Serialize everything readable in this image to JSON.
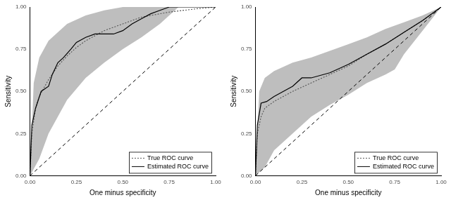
{
  "chart_data": [
    {
      "type": "line",
      "x_label": "One minus specificity",
      "y_label": "Sensitivity",
      "xlim": [
        0,
        1
      ],
      "ylim": [
        0,
        1
      ],
      "xticks": [
        {
          "value": 0,
          "label": "0.00"
        },
        {
          "value": 0.25,
          "label": "0.25"
        },
        {
          "value": 0.5,
          "label": "0.50"
        },
        {
          "value": 0.75,
          "label": "0.75"
        },
        {
          "value": 1,
          "label": "1.00"
        }
      ],
      "yticks": [
        {
          "value": 0,
          "label": "0.00"
        },
        {
          "value": 0.25,
          "label": "0.25"
        },
        {
          "value": 0.5,
          "label": "0.50"
        },
        {
          "value": 0.75,
          "label": "0.75"
        },
        {
          "value": 1,
          "label": "1.00"
        }
      ],
      "grid": false,
      "legend": "bottom right",
      "series": [
        {
          "name": "True ROC curve",
          "color": "#555555",
          "line_style": "dotted",
          "x": [
            0,
            0.01,
            0.03,
            0.05,
            0.1,
            0.15,
            0.2,
            0.25,
            0.3,
            0.4,
            0.5,
            0.6,
            0.75,
            0.9,
            1
          ],
          "values": [
            0,
            0.25,
            0.4,
            0.47,
            0.57,
            0.65,
            0.71,
            0.76,
            0.8,
            0.86,
            0.9,
            0.94,
            0.97,
            0.99,
            1
          ]
        },
        {
          "name": "Estimated ROC curve",
          "color": "#000000",
          "line_style": "solid",
          "x": [
            0,
            0.01,
            0.03,
            0.06,
            0.1,
            0.12,
            0.15,
            0.18,
            0.22,
            0.25,
            0.3,
            0.35,
            0.45,
            0.5,
            0.55,
            0.6,
            0.65,
            0.7,
            0.75,
            1
          ],
          "values": [
            0,
            0.3,
            0.4,
            0.5,
            0.53,
            0.6,
            0.67,
            0.7,
            0.75,
            0.79,
            0.82,
            0.84,
            0.84,
            0.86,
            0.9,
            0.93,
            0.96,
            0.98,
            1,
            1
          ]
        }
      ],
      "band": {
        "color": "#bebebe",
        "x": [
          0,
          0.02,
          0.05,
          0.1,
          0.2,
          0.3,
          0.4,
          0.5,
          0.6,
          0.7,
          0.75,
          0.8,
          0.9,
          1
        ],
        "lower": [
          0,
          0.04,
          0.1,
          0.25,
          0.45,
          0.58,
          0.67,
          0.75,
          0.82,
          0.9,
          0.95,
          1,
          1,
          1
        ],
        "upper": [
          0,
          0.55,
          0.7,
          0.8,
          0.9,
          0.95,
          0.98,
          1,
          1,
          1,
          1,
          1,
          1,
          1
        ]
      },
      "reference_line": {
        "x": [
          0,
          1
        ],
        "values": [
          0,
          1
        ],
        "color": "#000000",
        "line_style": "dashed"
      }
    },
    {
      "type": "line",
      "x_label": "One minus specificity",
      "y_label": "Sensitivity",
      "xlim": [
        0,
        1
      ],
      "ylim": [
        0,
        1
      ],
      "xticks": [
        {
          "value": 0,
          "label": "0.00"
        },
        {
          "value": 0.25,
          "label": "0.25"
        },
        {
          "value": 0.5,
          "label": "0.50"
        },
        {
          "value": 0.75,
          "label": "0.75"
        },
        {
          "value": 1,
          "label": "1.00"
        }
      ],
      "yticks": [
        {
          "value": 0,
          "label": "0.00"
        },
        {
          "value": 0.25,
          "label": "0.25"
        },
        {
          "value": 0.5,
          "label": "0.50"
        },
        {
          "value": 0.75,
          "label": "0.75"
        },
        {
          "value": 1,
          "label": "1.00"
        }
      ],
      "grid": false,
      "legend": "bottom right",
      "series": [
        {
          "name": "True ROC curve",
          "color": "#555555",
          "line_style": "dotted",
          "x": [
            0,
            0.01,
            0.03,
            0.05,
            0.1,
            0.2,
            0.3,
            0.4,
            0.5,
            0.6,
            0.7,
            0.8,
            0.9,
            1
          ],
          "values": [
            0,
            0.25,
            0.35,
            0.4,
            0.44,
            0.5,
            0.55,
            0.6,
            0.65,
            0.72,
            0.78,
            0.85,
            0.92,
            1
          ]
        },
        {
          "name": "Estimated ROC curve",
          "color": "#000000",
          "line_style": "solid",
          "x": [
            0,
            0.01,
            0.03,
            0.06,
            0.1,
            0.15,
            0.2,
            0.25,
            0.3,
            0.4,
            0.5,
            0.6,
            0.7,
            0.8,
            0.9,
            1
          ],
          "values": [
            0,
            0.3,
            0.43,
            0.44,
            0.47,
            0.5,
            0.53,
            0.58,
            0.58,
            0.61,
            0.66,
            0.72,
            0.78,
            0.85,
            0.92,
            1
          ]
        }
      ],
      "band": {
        "color": "#bebebe",
        "x": [
          0,
          0.02,
          0.05,
          0.1,
          0.2,
          0.3,
          0.4,
          0.5,
          0.6,
          0.7,
          0.75,
          0.8,
          0.9,
          1
        ],
        "lower": [
          0,
          0.02,
          0.05,
          0.15,
          0.25,
          0.35,
          0.42,
          0.48,
          0.55,
          0.6,
          0.63,
          0.72,
          0.86,
          1
        ],
        "upper": [
          0,
          0.5,
          0.58,
          0.62,
          0.67,
          0.7,
          0.74,
          0.78,
          0.82,
          0.87,
          0.89,
          0.91,
          0.95,
          1
        ]
      },
      "reference_line": {
        "x": [
          0,
          1
        ],
        "values": [
          0,
          1
        ],
        "color": "#000000",
        "line_style": "dashed"
      }
    }
  ]
}
